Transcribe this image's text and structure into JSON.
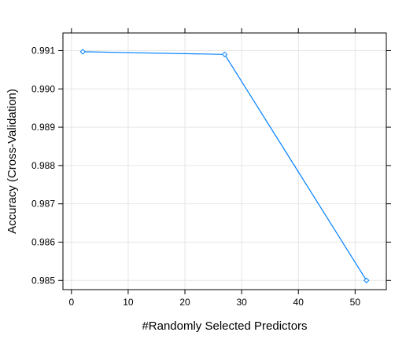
{
  "chart_data": {
    "type": "line",
    "title": "",
    "xlabel": "#Randomly Selected Predictors",
    "ylabel": "Accuracy (Cross-Validation)",
    "xlim": [
      -1.5,
      55.5
    ],
    "ylim": [
      0.98476,
      0.99146
    ],
    "x_ticks": [
      0,
      10,
      20,
      30,
      40,
      50
    ],
    "y_ticks": [
      0.985,
      0.986,
      0.987,
      0.988,
      0.989,
      0.99,
      0.991
    ],
    "x_tick_labels": [
      "0",
      "10",
      "20",
      "30",
      "40",
      "50"
    ],
    "y_tick_labels": [
      "0.985",
      "0.986",
      "0.987",
      "0.988",
      "0.989",
      "0.990",
      "0.991"
    ],
    "grid": true,
    "marker": "open-diamond",
    "series": [
      {
        "color": "#0080ff",
        "x": [
          2,
          27,
          52
        ],
        "y": [
          0.99097,
          0.9909,
          0.985
        ]
      }
    ]
  }
}
